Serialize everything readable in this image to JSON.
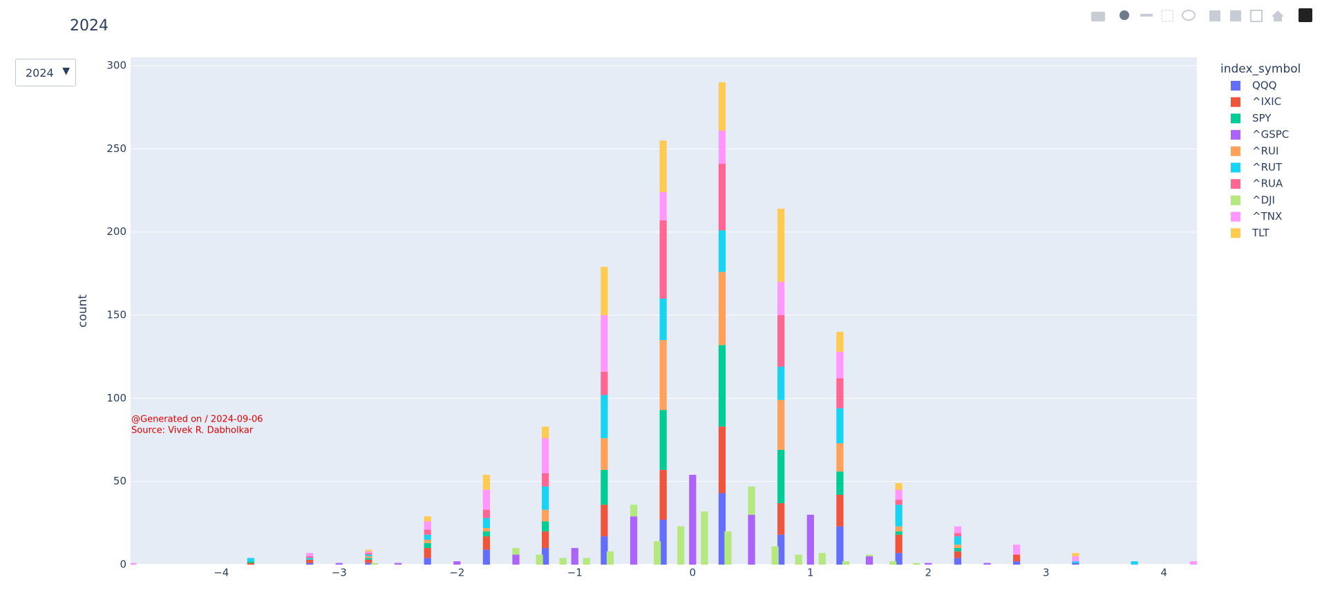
{
  "dropdown": "2024",
  "chart_data": {
    "type": "bar",
    "barmode": "stack",
    "title": "2024",
    "y_label": "count",
    "legend_title": "index_symbol",
    "annotation": [
      "@Generated on / 2024-09-06",
      "Source: Vivek R. Dabholkar"
    ],
    "xlim": [
      -4.77,
      4.28
    ],
    "xticks": [
      {
        "value": -4,
        "label": "−4"
      },
      {
        "value": -3,
        "label": "−3"
      },
      {
        "value": -2,
        "label": "−2"
      },
      {
        "value": -1,
        "label": "−1"
      },
      0,
      1,
      2,
      3,
      4
    ],
    "ylim": [
      0,
      305
    ],
    "yticks": [
      0,
      50,
      100,
      150,
      200,
      250,
      300
    ],
    "grid": true,
    "series": [
      {
        "name": "QQQ",
        "color": "#636efa",
        "x": [
          -3.25,
          -2.75,
          -2.25,
          -1.75,
          -1.25,
          -0.75,
          -0.25,
          0.25,
          0.75,
          1.25,
          1.75,
          2.25,
          2.75,
          3.25
        ],
        "values": [
          1,
          1,
          4,
          9,
          10,
          17,
          27,
          43,
          18,
          23,
          7,
          4,
          2,
          1
        ]
      },
      {
        "name": "^IXIC",
        "color": "#EF553B",
        "x": [
          -3.75,
          -3.25,
          -2.75,
          -2.25,
          -1.75,
          -1.25,
          -0.75,
          -0.25,
          0.25,
          0.75,
          1.25,
          1.75,
          2.25,
          2.75
        ],
        "values": [
          1,
          2,
          2,
          6,
          8,
          10,
          19,
          30,
          40,
          19,
          19,
          11,
          4,
          4
        ]
      },
      {
        "name": "SPY",
        "color": "#00cc96",
        "x": [
          -3.75,
          -2.75,
          -2.25,
          -1.75,
          -1.25,
          -0.75,
          -0.25,
          0.25,
          0.75,
          1.25,
          1.75,
          2.25
        ],
        "values": [
          1,
          1,
          3,
          3,
          6,
          21,
          36,
          49,
          32,
          14,
          2,
          2
        ]
      },
      {
        "name": "^GSPC",
        "color": "#ab63fa",
        "x": [
          -3,
          -2.5,
          -2,
          -1.5,
          -1,
          -0.5,
          0,
          0.5,
          1,
          1.5,
          2,
          2.5
        ],
        "values": [
          1,
          1,
          2,
          6,
          10,
          29,
          54,
          30,
          30,
          5,
          1,
          1
        ]
      },
      {
        "name": "^RUI",
        "color": "#FFA15A",
        "x": [
          -2.75,
          -2.25,
          -1.75,
          -1.25,
          -0.75,
          -0.25,
          0.25,
          0.75,
          1.25,
          1.75,
          2.25
        ],
        "values": [
          1,
          2,
          2,
          7,
          19,
          42,
          44,
          30,
          17,
          3,
          2
        ]
      },
      {
        "name": "^RUT",
        "color": "#19d3f3",
        "x": [
          -3.75,
          -3.25,
          -2.75,
          -2.25,
          -1.75,
          -1.25,
          -0.75,
          -0.25,
          0.25,
          0.75,
          1.25,
          1.75,
          2.25,
          3.25,
          3.75
        ],
        "values": [
          2,
          1,
          1,
          3,
          6,
          14,
          26,
          25,
          25,
          20,
          21,
          13,
          5,
          1,
          2
        ]
      },
      {
        "name": "^RUA",
        "color": "#FF6692",
        "x": [
          -3.25,
          -2.75,
          -2.25,
          -1.75,
          -1.25,
          -0.75,
          -0.25,
          0.25,
          0.75,
          1.25,
          1.75,
          2.25
        ],
        "values": [
          1,
          1,
          3,
          5,
          8,
          14,
          47,
          40,
          31,
          18,
          3,
          2
        ]
      },
      {
        "name": "^DJI",
        "color": "#B6E880",
        "x": [
          -2.7,
          -1.5,
          -1.3,
          -1.1,
          -0.9,
          -0.7,
          -0.5,
          -0.3,
          -0.1,
          0.1,
          0.3,
          0.5,
          0.7,
          0.9,
          1.1,
          1.3,
          1.5,
          1.7,
          1.9
        ],
        "values": [
          1,
          4,
          6,
          4,
          4,
          8,
          7,
          14,
          23,
          32,
          20,
          17,
          11,
          6,
          7,
          2,
          1,
          2,
          1
        ]
      },
      {
        "name": "^TNX",
        "color": "#FF97FF",
        "x": [
          -4.75,
          -3.25,
          -2.75,
          -2.25,
          -1.75,
          -1.25,
          -0.75,
          -0.25,
          0.25,
          0.75,
          1.25,
          1.75,
          2.25,
          2.75,
          3.25,
          4.25
        ],
        "values": [
          1,
          2,
          1,
          5,
          12,
          21,
          34,
          17,
          20,
          20,
          16,
          6,
          4,
          6,
          3,
          2
        ]
      },
      {
        "name": "TLT",
        "color": "#FECB52",
        "x": [
          -2.75,
          -2.25,
          -1.75,
          -1.25,
          -0.75,
          -0.25,
          0.25,
          0.75,
          1.25,
          1.75,
          3.25
        ],
        "values": [
          1,
          3,
          9,
          7,
          29,
          31,
          29,
          44,
          12,
          4,
          2
        ]
      }
    ]
  }
}
